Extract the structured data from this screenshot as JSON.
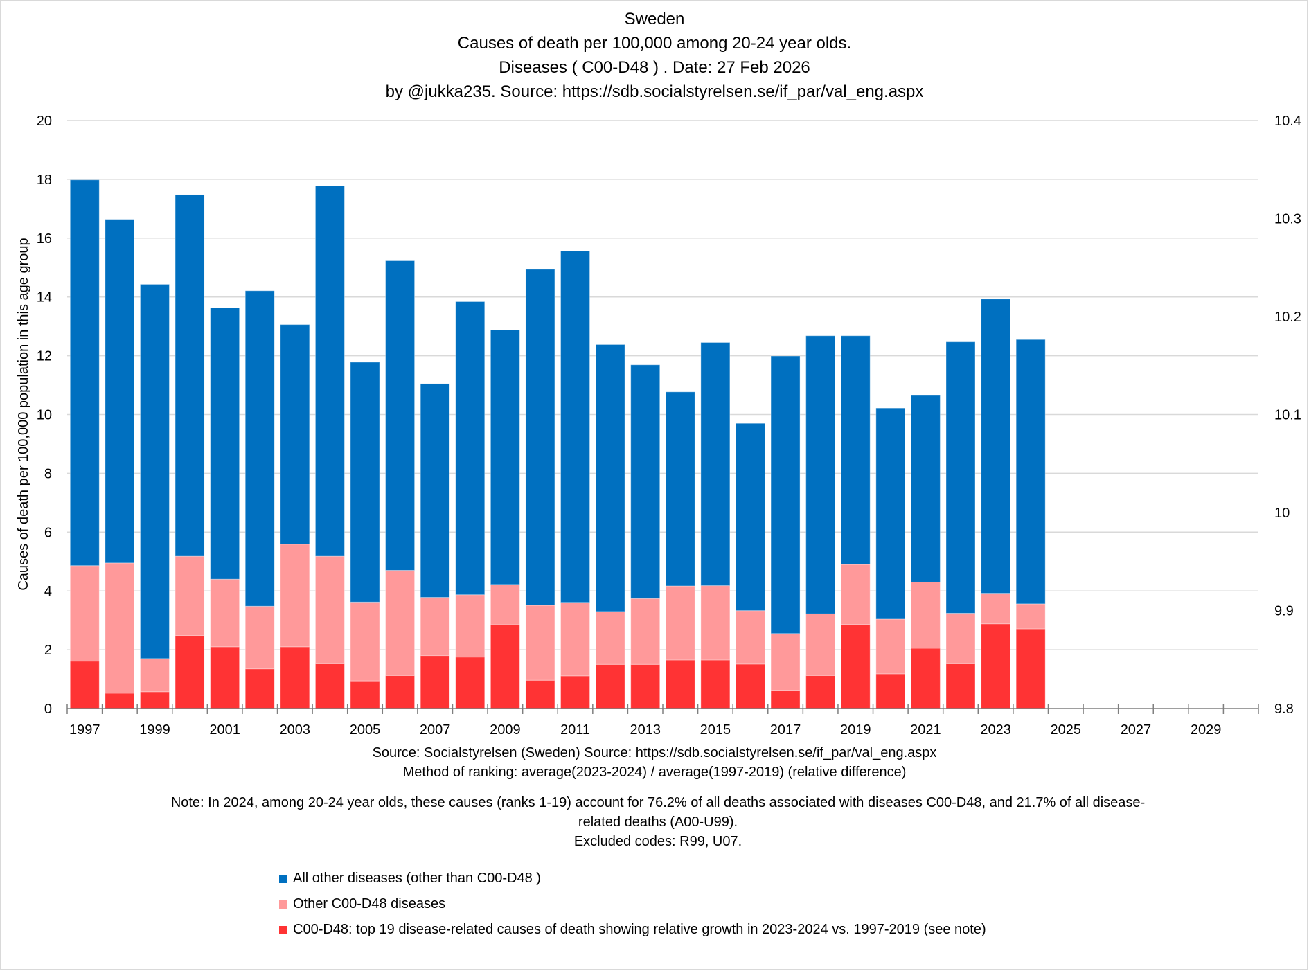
{
  "title": {
    "lines": [
      "Sweden",
      "Causes of death per 100,000 among  20-24 year olds.",
      "Diseases ( C00-D48 ) .  Date: 27 Feb 2026",
      "by @jukka235. Source: https://sdb.socialstyrelsen.se/if_par/val_eng.aspx"
    ]
  },
  "footer": {
    "source": "Source: Socialstyrelsen (Sweden)  Source: https://sdb.socialstyrelsen.se/if_par/val_eng.aspx",
    "method": "Method of ranking: average(2023-2024) / average(1997-2019)  (relative difference)",
    "note_line1": "Note: In 2024, among  20-24 year olds, these causes (ranks 1-19) account for 76.2% of all deaths associated with diseases C00-D48, and 21.7% of all disease-",
    "note_line2": "related deaths (A00-U99).",
    "excluded": "Excluded codes: R99, U07."
  },
  "chart_data": {
    "type": "bar",
    "stacked": true,
    "title": "Sweden — Causes of death per 100,000 among 20-24 year olds. Diseases (C00-D48)",
    "xlabel": "",
    "ylabel": "Causes of death per 100,000 population in this age group",
    "ylim": [
      0,
      20
    ],
    "yticks": [
      0,
      2,
      4,
      6,
      8,
      10,
      12,
      14,
      16,
      18,
      20
    ],
    "y2lim": [
      9.8,
      10.4
    ],
    "y2ticks": [
      "9.8",
      "9.9",
      "10",
      "10.1",
      "10.2",
      "10.3",
      "10.4"
    ],
    "grid": true,
    "legend_position": "bottom",
    "categories": [
      "1997",
      "1998",
      "1999",
      "2000",
      "2001",
      "2002",
      "2003",
      "2004",
      "2005",
      "2006",
      "2007",
      "2008",
      "2009",
      "2010",
      "2011",
      "2012",
      "2013",
      "2014",
      "2015",
      "2016",
      "2017",
      "2018",
      "2019",
      "2020",
      "2021",
      "2022",
      "2023",
      "2024",
      "2025",
      "2026",
      "2027",
      "2028",
      "2029",
      "2030"
    ],
    "xtick_labels": [
      "1997",
      "1999",
      "2001",
      "2003",
      "2005",
      "2007",
      "2009",
      "2011",
      "2013",
      "2015",
      "2017",
      "2019",
      "2021",
      "2023",
      "2025",
      "2027",
      "2029"
    ],
    "series": [
      {
        "name": "C00-D48: top 19 disease-related causes of death showing relative growth in 2023-2024 vs. 1997-2019 (see note)",
        "color": "#FF3334",
        "values": [
          1.61,
          0.52,
          0.57,
          2.48,
          2.1,
          1.35,
          2.1,
          1.52,
          0.94,
          1.12,
          1.8,
          1.75,
          2.85,
          0.96,
          1.11,
          1.5,
          1.5,
          1.65,
          1.65,
          1.51,
          0.62,
          1.12,
          2.86,
          1.18,
          2.05,
          1.52,
          2.88,
          2.71
        ]
      },
      {
        "name": "Other C00-D48 diseases",
        "color": "#FF999A",
        "values": [
          3.25,
          4.43,
          1.13,
          2.7,
          2.3,
          2.13,
          3.49,
          3.66,
          2.68,
          3.58,
          1.98,
          2.12,
          1.37,
          2.55,
          2.5,
          1.8,
          2.24,
          2.52,
          2.53,
          1.82,
          1.93,
          2.1,
          2.04,
          1.86,
          2.25,
          1.72,
          1.04,
          0.85
        ]
      },
      {
        "name": "All other diseases (other than C00-D48 )",
        "color": "#0070C0",
        "values": [
          13.12,
          11.69,
          12.73,
          12.3,
          9.23,
          10.73,
          7.47,
          12.6,
          8.16,
          10.53,
          7.27,
          9.97,
          8.66,
          11.43,
          11.96,
          9.08,
          7.95,
          6.6,
          8.27,
          6.37,
          9.44,
          9.46,
          7.78,
          7.18,
          6.35,
          9.23,
          10.01,
          8.99
        ]
      }
    ],
    "totals": [
      17.98,
      16.64,
      14.43,
      17.48,
      13.63,
      14.21,
      13.06,
      17.78,
      11.78,
      15.23,
      11.05,
      13.84,
      12.88,
      14.94,
      15.57,
      12.38,
      11.69,
      10.77,
      12.45,
      9.7,
      11.99,
      12.68,
      12.68,
      10.22,
      10.65,
      12.47,
      13.93,
      12.55
    ]
  },
  "legend": {
    "items": [
      {
        "label": "All other diseases (other than C00-D48 )",
        "color": "#0070C0"
      },
      {
        "label": "Other C00-D48 diseases",
        "color": "#FF999A"
      },
      {
        "label": "C00-D48: top 19 disease-related causes of death showing relative growth in 2023-2024 vs. 1997-2019 (see note)",
        "color": "#FF3334"
      }
    ]
  }
}
